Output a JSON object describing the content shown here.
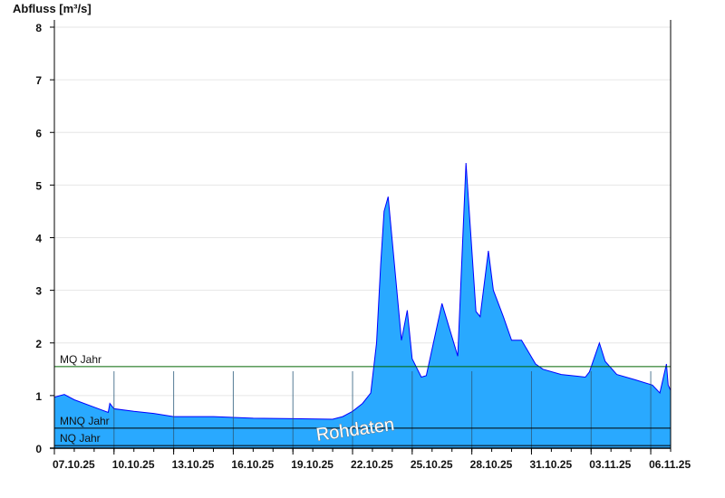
{
  "chart_data": {
    "type": "area",
    "ylabel": "Abfluss [m³/s]",
    "ylim": [
      0,
      8
    ],
    "yticks": [
      "0",
      "1",
      "2",
      "3",
      "4",
      "5",
      "6",
      "7",
      "8"
    ],
    "xlim": [
      "07.10.25 00:00",
      "07.11.25 00:00"
    ],
    "xticks": [
      "07.10.25",
      "10.10.25",
      "13.10.25",
      "16.10.25",
      "19.10.25",
      "22.10.25",
      "25.10.25",
      "28.10.25",
      "31.10.25",
      "03.11.25",
      "06.11.25"
    ],
    "grid": true,
    "watermark": "Rohdaten",
    "colors": {
      "fill": "#29a9ff",
      "line": "#0000ff",
      "mq": "#006400",
      "ref": "#000000",
      "grid": "#e6e6e6"
    },
    "reference_lines": [
      {
        "label": "MQ Jahr",
        "value": 1.55
      },
      {
        "label": "MNQ Jahr",
        "value": 0.38
      },
      {
        "label": "NQ Jahr",
        "value": 0.05
      }
    ],
    "series": [
      {
        "points": [
          [
            "07.10.25 00:00",
            0.97
          ],
          [
            "07.10.25 12:00",
            1.02
          ],
          [
            "08.10.25 00:00",
            0.92
          ],
          [
            "09.10.25 00:00",
            0.78
          ],
          [
            "09.10.25 17:00",
            0.68
          ],
          [
            "09.10.25 19:00",
            0.85
          ],
          [
            "10.10.25 00:00",
            0.75
          ],
          [
            "11.10.25 00:00",
            0.7
          ],
          [
            "12.10.25 00:00",
            0.66
          ],
          [
            "13.10.25 00:00",
            0.6
          ],
          [
            "15.10.25 00:00",
            0.6
          ],
          [
            "17.10.25 00:00",
            0.57
          ],
          [
            "19.10.25 00:00",
            0.56
          ],
          [
            "21.10.25 00:00",
            0.55
          ],
          [
            "21.10.25 12:00",
            0.6
          ],
          [
            "22.10.25 00:00",
            0.7
          ],
          [
            "22.10.25 12:00",
            0.85
          ],
          [
            "22.10.25 22:00",
            1.05
          ],
          [
            "23.10.25 05:00",
            2.0
          ],
          [
            "23.10.25 10:00",
            3.5
          ],
          [
            "23.10.25 14:00",
            4.5
          ],
          [
            "23.10.25 19:00",
            4.78
          ],
          [
            "24.10.25 11:00",
            2.05
          ],
          [
            "24.10.25 18:00",
            2.62
          ],
          [
            "25.10.25 00:00",
            1.7
          ],
          [
            "25.10.25 11:00",
            1.35
          ],
          [
            "25.10.25 17:00",
            1.38
          ],
          [
            "26.10.25 12:00",
            2.75
          ],
          [
            "27.10.25 07:00",
            1.75
          ],
          [
            "27.10.25 17:00",
            5.42
          ],
          [
            "28.10.25 05:00",
            2.6
          ],
          [
            "28.10.25 10:00",
            2.5
          ],
          [
            "28.10.25 20:00",
            3.75
          ],
          [
            "29.10.25 02:00",
            3.0
          ],
          [
            "29.10.25 14:00",
            2.5
          ],
          [
            "30.10.25 00:00",
            2.05
          ],
          [
            "30.10.25 12:00",
            2.05
          ],
          [
            "31.10.25 05:00",
            1.6
          ],
          [
            "31.10.25 14:00",
            1.5
          ],
          [
            "01.11.25 12:00",
            1.4
          ],
          [
            "02.11.25 17:00",
            1.35
          ],
          [
            "02.11.25 22:00",
            1.45
          ],
          [
            "03.11.25 10:00",
            2.0
          ],
          [
            "03.11.25 17:00",
            1.65
          ],
          [
            "04.11.25 07:00",
            1.4
          ],
          [
            "05.11.25 05:00",
            1.3
          ],
          [
            "06.11.25 02:00",
            1.2
          ],
          [
            "06.11.25 11:00",
            1.05
          ],
          [
            "06.11.25 19:00",
            1.6
          ],
          [
            "06.11.25 21:00",
            1.2
          ],
          [
            "07.11.25 00:00",
            1.1
          ]
        ]
      }
    ]
  }
}
